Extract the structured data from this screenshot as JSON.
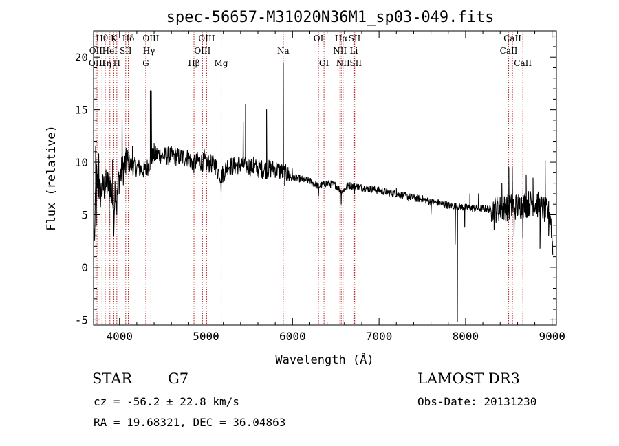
{
  "chart_data": {
    "type": "line",
    "title": "spec-56657-M31020N36M1_sp03-049.fits",
    "xlabel": "Wavelength (Å)",
    "ylabel": "Flux (relative)",
    "xlim": [
      3700,
      9050
    ],
    "ylim": [
      -5.5,
      22.5
    ],
    "xticks": [
      4000,
      5000,
      6000,
      7000,
      8000,
      9000
    ],
    "yticks": [
      -5,
      0,
      5,
      10,
      15,
      20
    ],
    "grid": false,
    "line_color": "#000000",
    "marker_color": "#b22222",
    "lines": [
      {
        "label": "Hθ",
        "x": 3798,
        "row": 0
      },
      {
        "label": "OII",
        "x": 3727,
        "row": 1
      },
      {
        "label": "OIII",
        "x": 3740,
        "row": 2
      },
      {
        "label": "Hη",
        "x": 3835,
        "row": 2
      },
      {
        "label": "K",
        "x": 3934,
        "row": 0
      },
      {
        "label": "HeI",
        "x": 3889,
        "row": 1
      },
      {
        "label": "H",
        "x": 3969,
        "row": 2
      },
      {
        "label": "Hδ",
        "x": 4102,
        "row": 0
      },
      {
        "label": "SII",
        "x": 4072,
        "row": 1
      },
      {
        "label": "OIII",
        "x": 4363,
        "row": 0
      },
      {
        "label": "Hγ",
        "x": 4340,
        "row": 1
      },
      {
        "label": "G",
        "x": 4304,
        "row": 2
      },
      {
        "label": "Hβ",
        "x": 4861,
        "row": 2
      },
      {
        "label": "OIII",
        "x": 5007,
        "row": 0
      },
      {
        "label": "OIII",
        "x": 4959,
        "row": 1
      },
      {
        "label": "Mg",
        "x": 5175,
        "row": 2
      },
      {
        "label": "Na",
        "x": 5893,
        "row": 1
      },
      {
        "label": "OI",
        "x": 6300,
        "row": 0
      },
      {
        "label": "OI",
        "x": 6364,
        "row": 2
      },
      {
        "label": "Hα",
        "x": 6563,
        "row": 0
      },
      {
        "label": "NII",
        "x": 6548,
        "row": 1
      },
      {
        "label": "NII",
        "x": 6584,
        "row": 2
      },
      {
        "label": "SII",
        "x": 6717,
        "row": 0
      },
      {
        "label": "Li",
        "x": 6708,
        "row": 1
      },
      {
        "label": "SII",
        "x": 6731,
        "row": 2
      },
      {
        "label": "CaII",
        "x": 8542,
        "row": 0
      },
      {
        "label": "CaII",
        "x": 8498,
        "row": 1
      },
      {
        "label": "CaII",
        "x": 8662,
        "row": 2
      }
    ],
    "spectrum_anchors": [
      [
        3700,
        6.0
      ],
      [
        3712,
        1.0
      ],
      [
        3725,
        9.5
      ],
      [
        3745,
        8.0
      ],
      [
        3780,
        7.0
      ],
      [
        3800,
        7.5
      ],
      [
        3850,
        7.8
      ],
      [
        3900,
        8.0
      ],
      [
        3934,
        5.0
      ],
      [
        3950,
        8.0
      ],
      [
        3969,
        6.0
      ],
      [
        3985,
        8.2
      ],
      [
        4000,
        8.6
      ],
      [
        4050,
        9.5
      ],
      [
        4102,
        10.0
      ],
      [
        4150,
        9.6
      ],
      [
        4200,
        9.5
      ],
      [
        4300,
        9.2
      ],
      [
        4340,
        9.8
      ],
      [
        4380,
        10.5
      ],
      [
        4450,
        10.8
      ],
      [
        4500,
        10.6
      ],
      [
        4600,
        10.6
      ],
      [
        4700,
        10.5
      ],
      [
        4800,
        10.4
      ],
      [
        4861,
        9.8
      ],
      [
        4900,
        10.1
      ],
      [
        5000,
        9.9
      ],
      [
        5100,
        9.8
      ],
      [
        5175,
        8.6
      ],
      [
        5250,
        9.7
      ],
      [
        5300,
        9.6
      ],
      [
        5400,
        9.8
      ],
      [
        5500,
        9.6
      ],
      [
        5600,
        9.4
      ],
      [
        5700,
        9.3
      ],
      [
        5800,
        9.4
      ],
      [
        5893,
        9.0
      ],
      [
        6000,
        8.6
      ],
      [
        6100,
        8.4
      ],
      [
        6200,
        8.2
      ],
      [
        6300,
        7.7
      ],
      [
        6400,
        8.0
      ],
      [
        6500,
        7.8
      ],
      [
        6563,
        7.2
      ],
      [
        6650,
        7.8
      ],
      [
        6800,
        7.6
      ],
      [
        7000,
        7.3
      ],
      [
        7200,
        7.0
      ],
      [
        7400,
        6.6
      ],
      [
        7500,
        6.5
      ],
      [
        7600,
        6.2
      ],
      [
        7700,
        6.1
      ],
      [
        7800,
        5.9
      ],
      [
        7900,
        5.8
      ],
      [
        8000,
        5.7
      ],
      [
        8100,
        5.6
      ],
      [
        8200,
        5.6
      ],
      [
        8300,
        5.5
      ],
      [
        8400,
        5.6
      ],
      [
        8500,
        5.7
      ],
      [
        8600,
        5.8
      ],
      [
        8700,
        6.0
      ],
      [
        8800,
        6.2
      ],
      [
        8900,
        5.5
      ],
      [
        8980,
        5.0
      ],
      [
        9000,
        3.0
      ],
      [
        9010,
        1.0
      ]
    ],
    "spectrum_features": [
      [
        3724,
        11.5
      ],
      [
        3732,
        4.0
      ],
      [
        3760,
        10.8
      ],
      [
        3880,
        3.0
      ],
      [
        3920,
        10.2
      ],
      [
        3934,
        3.0
      ],
      [
        3969,
        5.0
      ],
      [
        4030,
        14.0
      ],
      [
        4070,
        10.9
      ],
      [
        4150,
        11.5
      ],
      [
        4356,
        16.8
      ],
      [
        4368,
        16.8
      ],
      [
        4400,
        11.8
      ],
      [
        4980,
        11.2
      ],
      [
        5175,
        7.2
      ],
      [
        5430,
        13.8
      ],
      [
        5457,
        15.5
      ],
      [
        5550,
        10.5
      ],
      [
        5700,
        15.0
      ],
      [
        5893,
        19.5
      ],
      [
        5908,
        7.8
      ],
      [
        6300,
        6.8
      ],
      [
        6563,
        6.0
      ],
      [
        6715,
        7.0
      ],
      [
        7200,
        7.5
      ],
      [
        7340,
        6.3
      ],
      [
        7600,
        5.0
      ],
      [
        7880,
        2.2
      ],
      [
        7905,
        -5.2
      ],
      [
        7990,
        3.8
      ],
      [
        8050,
        7.0
      ],
      [
        8150,
        7.0
      ],
      [
        8330,
        3.6
      ],
      [
        8420,
        8.0
      ],
      [
        8500,
        9.5
      ],
      [
        8540,
        9.5
      ],
      [
        8560,
        3.0
      ],
      [
        8662,
        2.8
      ],
      [
        8700,
        8.8
      ],
      [
        8780,
        8.5
      ],
      [
        8860,
        1.8
      ],
      [
        8920,
        10.2
      ],
      [
        8960,
        3.0
      ]
    ]
  },
  "footer": {
    "object_class": "STAR",
    "subclass": "G7",
    "survey": "LAMOST DR3",
    "redshift": "cz = -56.2 ± 22.8 km/s",
    "obs_date": "Obs-Date: 20131230",
    "coords": "RA =  19.68321, DEC =  36.04863"
  }
}
